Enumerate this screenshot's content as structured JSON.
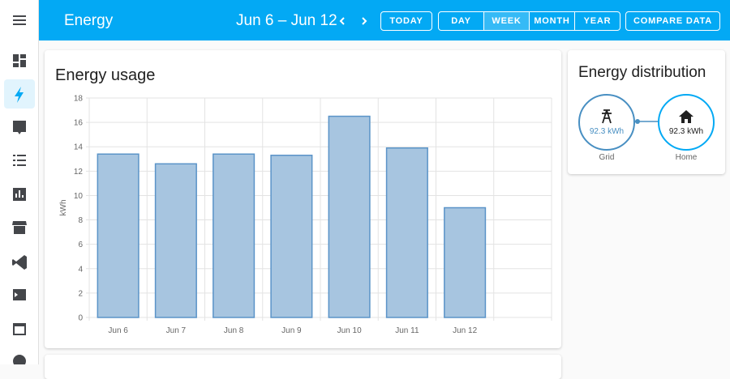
{
  "header": {
    "title": "Energy",
    "date_range": "Jun 6 – Jun 12",
    "today": "TODAY",
    "periods": [
      "DAY",
      "WEEK",
      "MONTH",
      "YEAR"
    ],
    "compare": "COMPARE DATA"
  },
  "chart_data": {
    "type": "bar",
    "title": "Energy usage",
    "y_label": "kWh",
    "categories": [
      "Jun 6",
      "Jun 7",
      "Jun 8",
      "Jun 9",
      "Jun 10",
      "Jun 11",
      "Jun 12",
      null
    ],
    "values": [
      13.4,
      12.6,
      13.4,
      13.3,
      16.5,
      13.9,
      9.0,
      null
    ],
    "color": "#a7c5e0",
    "stroke": "#5b94c8",
    "ylim": [
      0,
      18
    ],
    "yticks": [
      0,
      2,
      4,
      6,
      8,
      10,
      12,
      14,
      16,
      18
    ],
    "grid": true
  },
  "distribution": {
    "title": "Energy distribution",
    "grid": {
      "value": "92.3 kWh",
      "label": "Grid"
    },
    "home": {
      "value": "92.3 kWh",
      "label": "Home"
    }
  }
}
